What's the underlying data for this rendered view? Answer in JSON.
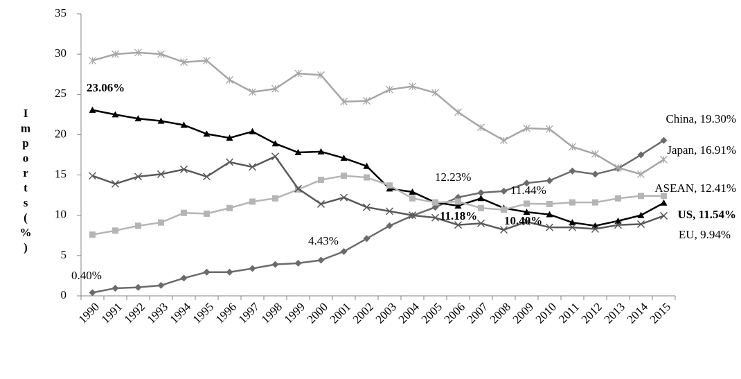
{
  "chart_data": {
    "type": "line",
    "y_label": "Imports (%)",
    "categories": [
      "1990",
      "1991",
      "1992",
      "1993",
      "1994",
      "1995",
      "1996",
      "1997",
      "1998",
      "1999",
      "2000",
      "2001",
      "2002",
      "2003",
      "2004",
      "2005",
      "2006",
      "2007",
      "2008",
      "2009",
      "2010",
      "2011",
      "2012",
      "2013",
      "2014",
      "2015"
    ],
    "ylim": [
      0,
      35
    ],
    "yticks": [
      0,
      5,
      10,
      15,
      20,
      25,
      30,
      35
    ],
    "grid": false,
    "series": [
      {
        "name": "China",
        "color": "#6b6b6b",
        "marker": "diamond",
        "values": [
          0.4,
          0.95,
          1.05,
          1.3,
          2.2,
          2.95,
          2.95,
          3.4,
          3.9,
          4.05,
          4.43,
          5.5,
          7.1,
          8.7,
          9.95,
          11.0,
          12.23,
          12.8,
          13.0,
          14.0,
          14.3,
          15.5,
          15.1,
          15.8,
          17.5,
          19.3
        ]
      },
      {
        "name": "Japan",
        "color": "#a6a6a6",
        "marker": "asterisk",
        "values": [
          29.2,
          30.0,
          30.2,
          30.0,
          29.0,
          29.2,
          26.8,
          25.3,
          25.7,
          27.6,
          27.4,
          24.1,
          24.2,
          25.6,
          26.0,
          25.2,
          22.8,
          20.9,
          19.3,
          20.8,
          20.7,
          18.5,
          17.6,
          15.9,
          15.1,
          16.91
        ]
      },
      {
        "name": "US",
        "color": "#000000",
        "marker": "triangle",
        "values": [
          23.06,
          22.5,
          22.0,
          21.7,
          21.2,
          20.1,
          19.6,
          20.4,
          18.9,
          17.8,
          17.9,
          17.1,
          16.1,
          13.3,
          12.9,
          11.6,
          11.18,
          12.1,
          10.9,
          10.4,
          10.1,
          9.1,
          8.7,
          9.3,
          10.0,
          11.54
        ]
      },
      {
        "name": "ASEAN",
        "color": "#b5b5b5",
        "marker": "square",
        "values": [
          7.6,
          8.1,
          8.7,
          9.1,
          10.3,
          10.2,
          10.9,
          11.7,
          12.1,
          13.2,
          14.4,
          14.9,
          14.7,
          13.7,
          12.1,
          11.6,
          11.7,
          10.9,
          10.7,
          11.44,
          11.4,
          11.6,
          11.6,
          12.1,
          12.4,
          12.41
        ]
      },
      {
        "name": "EU",
        "color": "#595959",
        "marker": "x",
        "values": [
          14.9,
          13.9,
          14.8,
          15.1,
          15.7,
          14.8,
          16.6,
          16.0,
          17.3,
          13.3,
          11.4,
          12.2,
          11.0,
          10.5,
          10.0,
          9.7,
          8.8,
          9.0,
          8.2,
          9.2,
          8.5,
          8.5,
          8.3,
          8.8,
          8.9,
          9.94
        ]
      }
    ],
    "annotations": [
      "23.06%",
      "0.40%",
      "4.43%",
      "12.23%",
      "11.18%",
      "11.44%",
      "10.40%",
      "China, 19.30%",
      "Japan, 16.91%",
      "ASEAN, 12.41%",
      "US, 11.54%",
      "EU, 9.94%"
    ]
  }
}
